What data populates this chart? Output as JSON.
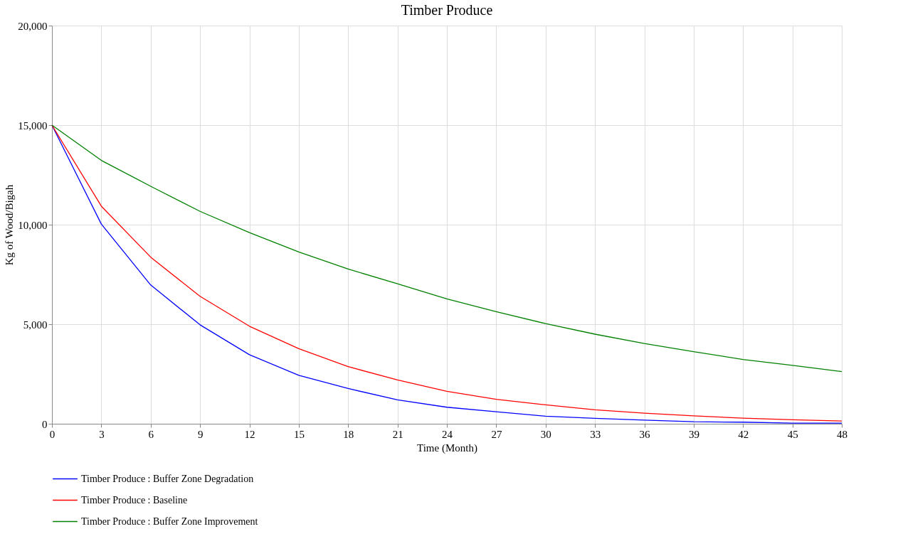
{
  "chart_data": {
    "type": "line",
    "title": "Timber Produce",
    "xlabel": "Time (Month)",
    "ylabel": "Kg of Wood/Bigah",
    "x": [
      0,
      3,
      6,
      9,
      12,
      15,
      18,
      21,
      24,
      27,
      30,
      33,
      36,
      39,
      42,
      45,
      48
    ],
    "series": [
      {
        "name": "Timber Produce : Buffer Zone Degradation",
        "color": "#0000ff",
        "values": [
          15000,
          10030,
          6970,
          4970,
          3470,
          2430,
          1770,
          1200,
          830,
          600,
          380,
          270,
          180,
          100,
          80,
          30,
          30
        ]
      },
      {
        "name": "Timber Produce : Baseline",
        "color": "#ff0000",
        "values": [
          15000,
          10930,
          8370,
          6400,
          4900,
          3770,
          2870,
          2200,
          1630,
          1230,
          950,
          700,
          530,
          400,
          280,
          200,
          140
        ]
      },
      {
        "name": "Timber Produce : Buffer Zone Improvement",
        "color": "#008000",
        "values": [
          15000,
          13230,
          11930,
          10670,
          9600,
          8630,
          7770,
          7030,
          6270,
          5630,
          5030,
          4500,
          4030,
          3620,
          3230,
          2930,
          2620
        ]
      }
    ],
    "xlim": [
      0,
      48
    ],
    "xticks": [
      0,
      3,
      6,
      9,
      12,
      15,
      18,
      21,
      24,
      27,
      30,
      33,
      36,
      39,
      42,
      45,
      48
    ],
    "ylim": [
      0,
      20000
    ],
    "yticks": [
      0,
      {
        "value": 5000,
        "label": "5,000"
      },
      {
        "value": 10000,
        "label": "10,000"
      },
      {
        "value": 15000,
        "label": "15,000"
      },
      {
        "value": 20000,
        "label": "20,000"
      }
    ],
    "grid": true,
    "legend": "bottom",
    "marker": "none",
    "line_style": "solid"
  }
}
